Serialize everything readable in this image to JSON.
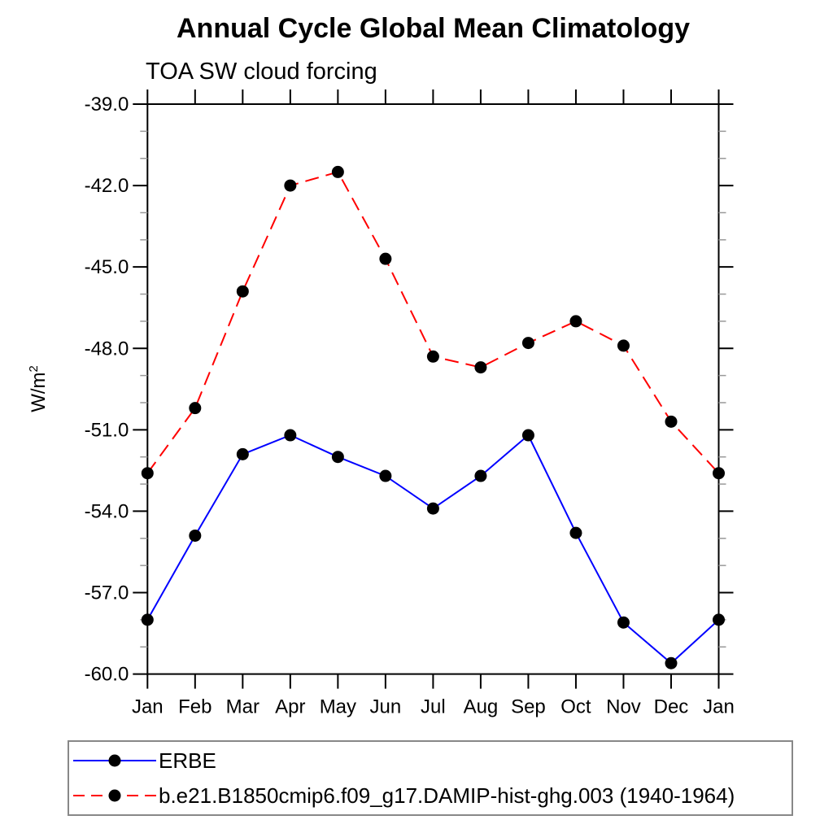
{
  "chart_data": {
    "type": "line",
    "title": "Annual Cycle Global Mean Climatology",
    "subtitle": "TOA SW cloud forcing",
    "ylabel_base": "W/m",
    "ylabel_exponent": "2",
    "categories": [
      "Jan",
      "Feb",
      "Mar",
      "Apr",
      "May",
      "Jun",
      "Jul",
      "Aug",
      "Sep",
      "Oct",
      "Nov",
      "Dec",
      "Jan"
    ],
    "ytick_labels": [
      "-39.0",
      "-42.0",
      "-45.0",
      "-48.0",
      "-51.0",
      "-54.0",
      "-57.0",
      "-60.0"
    ],
    "ylim": [
      -60,
      -39
    ],
    "y_major_step": 3,
    "y_minor_step": 1,
    "grid": false,
    "legend_position": "bottom-left-box",
    "series": [
      {
        "name": "ERBE",
        "color": "#0000ff",
        "line_style": "solid",
        "marker": "filled-circle",
        "marker_color": "#000000",
        "values": [
          -58.0,
          -54.9,
          -51.9,
          -51.2,
          -52.0,
          -52.7,
          -53.9,
          -52.7,
          -51.2,
          -54.8,
          -58.1,
          -59.6,
          -58.0
        ]
      },
      {
        "name": "b.e21.B1850cmip6.f09_g17.DAMIP-hist-ghg.003 (1940-1964)",
        "color": "#ff0000",
        "line_style": "dashed",
        "marker": "filled-circle",
        "marker_color": "#000000",
        "values": [
          -52.6,
          -50.2,
          -45.9,
          -42.0,
          -41.5,
          -44.7,
          -48.3,
          -48.7,
          -47.8,
          -47.0,
          -47.9,
          -50.7,
          -52.6
        ]
      }
    ]
  }
}
